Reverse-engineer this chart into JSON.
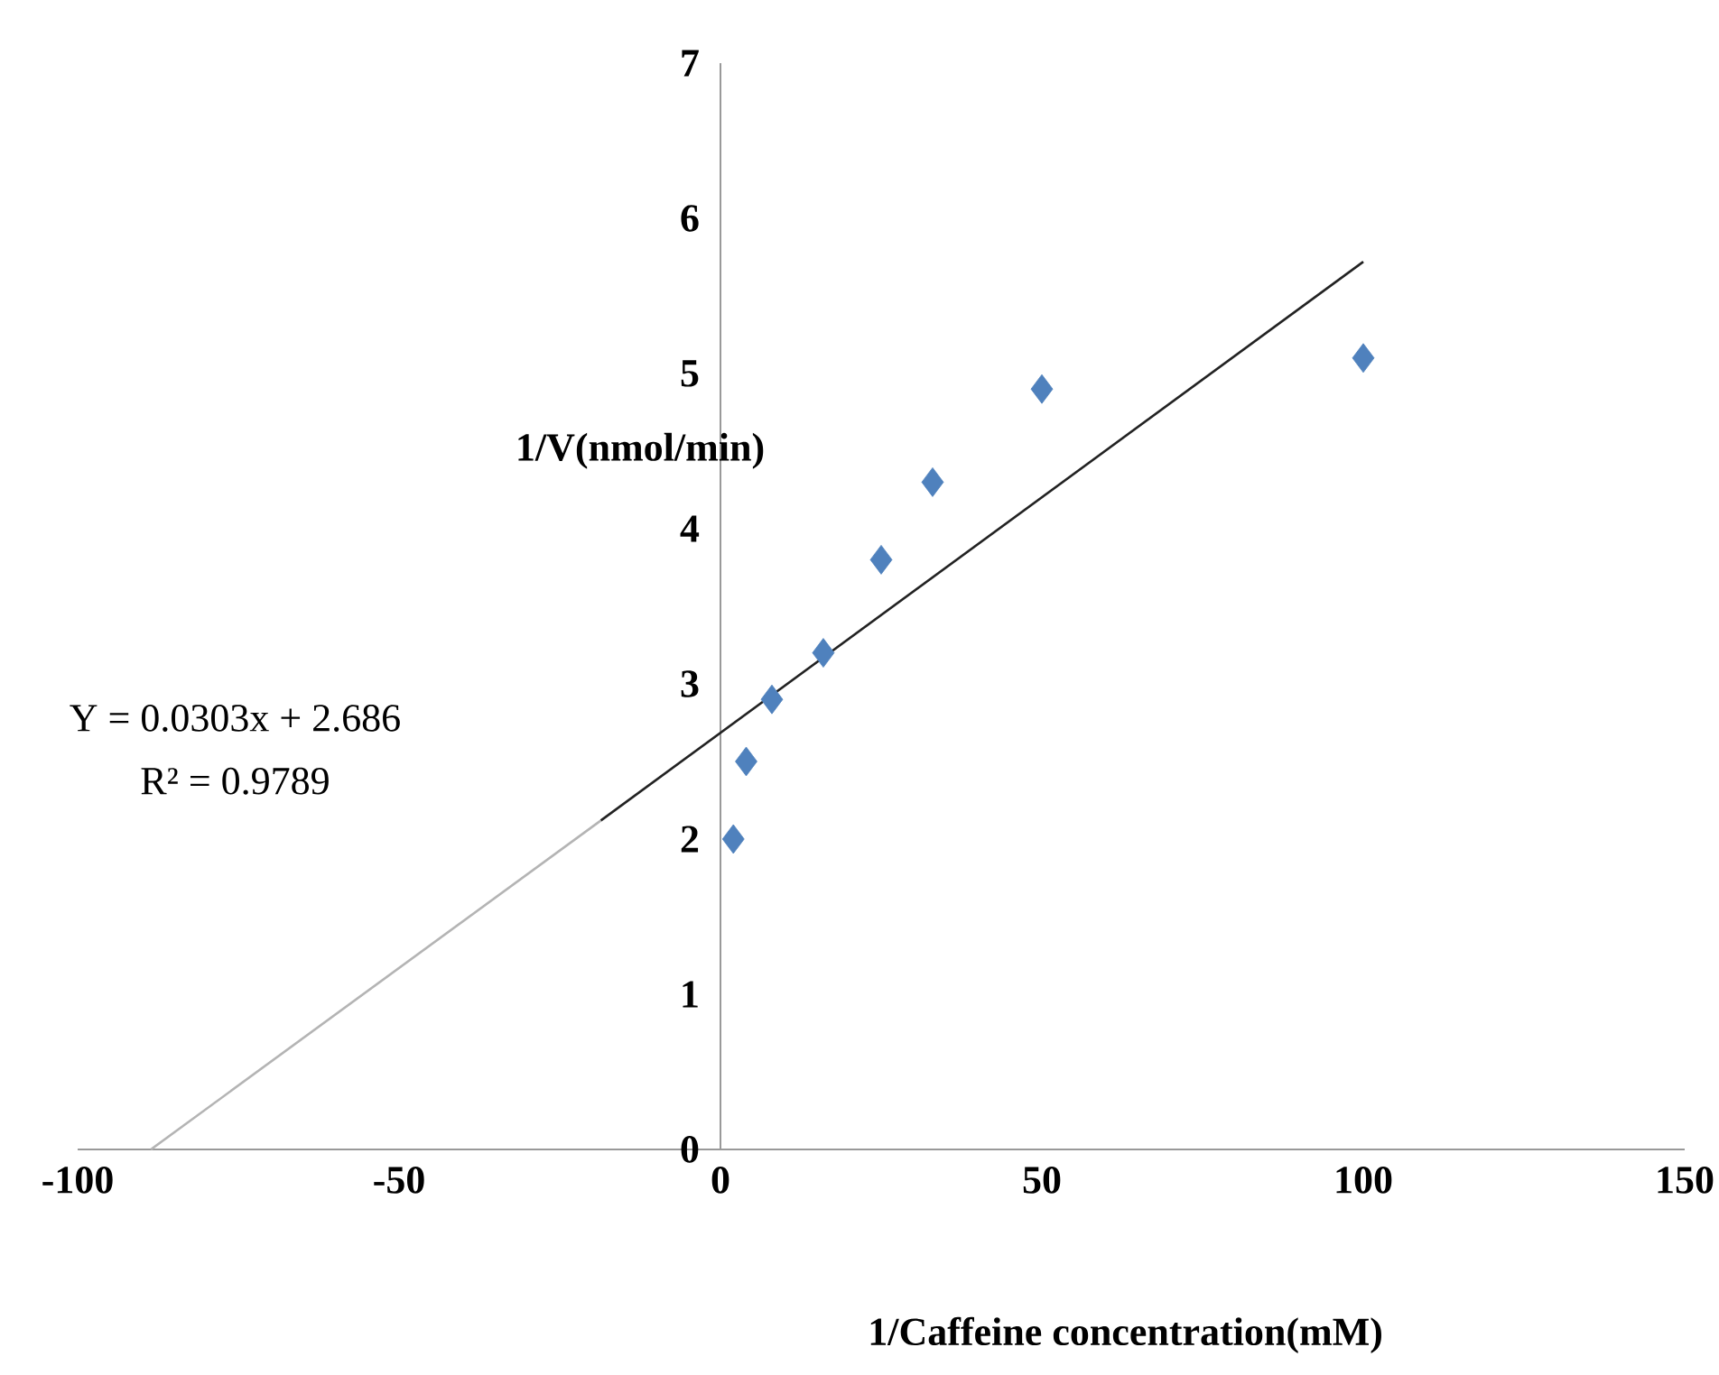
{
  "chart_data": {
    "type": "scatter",
    "xlabel": "1/Caffeine concentration(mM)",
    "ylabel": "1/V(nmol/min)",
    "annotations": [
      "Y = 0.0303x + 2.686",
      "R² = 0.9789"
    ],
    "xlim": [
      -100,
      150
    ],
    "xticks": [
      -100,
      -50,
      0,
      50,
      100,
      150
    ],
    "ylim": [
      0,
      7
    ],
    "yticks": [
      0,
      1,
      2,
      3,
      4,
      5,
      6,
      7
    ],
    "series": [
      {
        "marker": "diamond",
        "color": "#4f81bd",
        "x": [
          2,
          4,
          8,
          16,
          25,
          33,
          50,
          100
        ],
        "values": [
          2.0,
          2.5,
          2.9,
          3.2,
          3.8,
          4.3,
          4.9,
          5.1
        ]
      },
      {
        "type": "line",
        "marker": "none",
        "color": "#b4b4b4",
        "x": [
          -88.6,
          -18.6
        ],
        "values": [
          0,
          2.12
        ]
      },
      {
        "type": "line",
        "marker": "none",
        "color": "#222222",
        "x": [
          -18.6,
          100
        ],
        "values": [
          2.12,
          5.72
        ]
      }
    ]
  }
}
